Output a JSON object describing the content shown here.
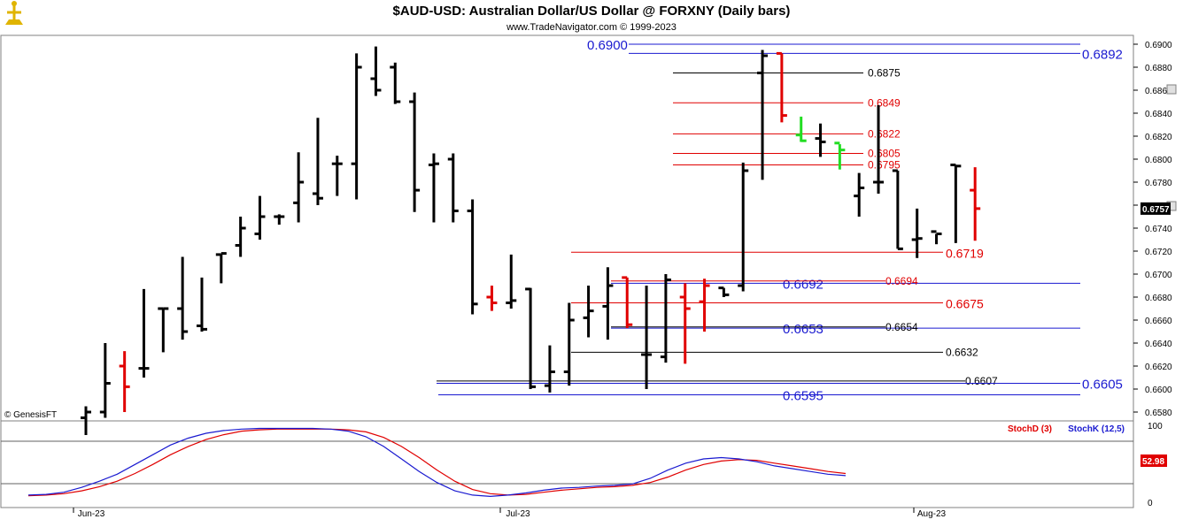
{
  "header": {
    "title": "$AUD-USD:  Australian Dollar/US Dollar @ FORXNY  (Daily bars)",
    "subtitle": "www.TradeNavigator.com © 1999-2023",
    "copyright": "© GenesisFT"
  },
  "colors": {
    "up_bar": "#000000",
    "down_bar": "#e00000",
    "highlight_bar": "#22dd22",
    "blue_level": "#1a1ad0",
    "red_level": "#e00000",
    "black_level": "#000000",
    "stoch_d": "#e00000",
    "stoch_k": "#1a1ad0"
  },
  "chart_data": {
    "type": "ohlc",
    "ylim": [
      0.657,
      0.691
    ],
    "price_ticks": [
      "0.6900",
      "0.6880",
      "0.6860",
      "0.6840",
      "0.6820",
      "0.6800",
      "0.6780",
      "0.6760",
      "0.6740",
      "0.6720",
      "0.6700",
      "0.6680",
      "0.6660",
      "0.6640",
      "0.6620",
      "0.6600",
      "0.6580"
    ],
    "x_labels": [
      "Jun-23",
      "Jul-23",
      "Aug-23"
    ],
    "last_price": "0.6757",
    "bars": [
      {
        "date": "2023-05-31",
        "o": 0.6575,
        "h": 0.6585,
        "l": 0.656,
        "c": 0.658,
        "color": "up"
      },
      {
        "date": "2023-06-01",
        "o": 0.658,
        "h": 0.664,
        "l": 0.6575,
        "c": 0.6605,
        "color": "up"
      },
      {
        "date": "2023-06-02",
        "o": 0.662,
        "h": 0.6633,
        "l": 0.658,
        "c": 0.6602,
        "color": "down"
      },
      {
        "date": "2023-06-05",
        "o": 0.6618,
        "h": 0.6687,
        "l": 0.661,
        "c": 0.6618,
        "color": "up"
      },
      {
        "date": "2023-06-06",
        "o": 0.667,
        "h": 0.667,
        "l": 0.6632,
        "c": 0.667,
        "color": "up"
      },
      {
        "date": "2023-06-07",
        "o": 0.667,
        "h": 0.6715,
        "l": 0.6643,
        "c": 0.665,
        "color": "up"
      },
      {
        "date": "2023-06-08",
        "o": 0.6655,
        "h": 0.6697,
        "l": 0.665,
        "c": 0.6652,
        "color": "up"
      },
      {
        "date": "2023-06-09",
        "o": 0.6717,
        "h": 0.6717,
        "l": 0.6692,
        "c": 0.6718,
        "color": "up"
      },
      {
        "date": "2023-06-12",
        "o": 0.6725,
        "h": 0.675,
        "l": 0.6715,
        "c": 0.674,
        "color": "up"
      },
      {
        "date": "2023-06-13",
        "o": 0.6735,
        "h": 0.6768,
        "l": 0.673,
        "c": 0.675,
        "color": "up"
      },
      {
        "date": "2023-06-14",
        "o": 0.675,
        "h": 0.6752,
        "l": 0.6743,
        "c": 0.675,
        "color": "up"
      },
      {
        "date": "2023-06-15",
        "o": 0.6762,
        "h": 0.6806,
        "l": 0.6745,
        "c": 0.678,
        "color": "up"
      },
      {
        "date": "2023-06-16",
        "o": 0.677,
        "h": 0.6836,
        "l": 0.676,
        "c": 0.6766,
        "color": "up"
      },
      {
        "date": "2023-06-19",
        "o": 0.6796,
        "h": 0.6803,
        "l": 0.6768,
        "c": 0.6796,
        "color": "up"
      },
      {
        "date": "2023-06-20",
        "o": 0.6796,
        "h": 0.6892,
        "l": 0.6765,
        "c": 0.688,
        "color": "up"
      },
      {
        "date": "2023-06-21",
        "o": 0.687,
        "h": 0.6898,
        "l": 0.6855,
        "c": 0.686,
        "color": "up"
      },
      {
        "date": "2023-06-22",
        "o": 0.688,
        "h": 0.6884,
        "l": 0.6848,
        "c": 0.685,
        "color": "up"
      },
      {
        "date": "2023-06-23",
        "o": 0.685,
        "h": 0.6858,
        "l": 0.6754,
        "c": 0.6773,
        "color": "up"
      },
      {
        "date": "2023-06-26",
        "o": 0.6795,
        "h": 0.6805,
        "l": 0.6745,
        "c": 0.6796,
        "color": "up"
      },
      {
        "date": "2023-06-27",
        "o": 0.68,
        "h": 0.6805,
        "l": 0.6745,
        "c": 0.6755,
        "color": "up"
      },
      {
        "date": "2023-06-28",
        "o": 0.6755,
        "h": 0.6765,
        "l": 0.6665,
        "c": 0.6674,
        "color": "up"
      },
      {
        "date": "2023-06-29",
        "o": 0.668,
        "h": 0.669,
        "l": 0.6668,
        "c": 0.6675,
        "color": "down"
      },
      {
        "date": "2023-06-30",
        "o": 0.6675,
        "h": 0.6717,
        "l": 0.667,
        "c": 0.6677,
        "color": "up"
      },
      {
        "date": "2023-07-03",
        "o": 0.6687,
        "h": 0.6688,
        "l": 0.66,
        "c": 0.6602,
        "color": "up"
      },
      {
        "date": "2023-07-04",
        "o": 0.6603,
        "h": 0.6638,
        "l": 0.6597,
        "c": 0.6615,
        "color": "up"
      },
      {
        "date": "2023-07-05",
        "o": 0.6615,
        "h": 0.6675,
        "l": 0.6603,
        "c": 0.666,
        "color": "up"
      },
      {
        "date": "2023-07-06",
        "o": 0.6662,
        "h": 0.669,
        "l": 0.6645,
        "c": 0.6668,
        "color": "up"
      },
      {
        "date": "2023-07-07",
        "o": 0.6672,
        "h": 0.6706,
        "l": 0.6643,
        "c": 0.669,
        "color": "up"
      },
      {
        "date": "2023-07-10",
        "o": 0.6697,
        "h": 0.6697,
        "l": 0.6653,
        "c": 0.6656,
        "color": "down"
      },
      {
        "date": "2023-07-11",
        "o": 0.663,
        "h": 0.669,
        "l": 0.66,
        "c": 0.663,
        "color": "up"
      },
      {
        "date": "2023-07-12",
        "o": 0.6628,
        "h": 0.67,
        "l": 0.6623,
        "c": 0.6695,
        "color": "up"
      },
      {
        "date": "2023-07-13",
        "o": 0.668,
        "h": 0.6692,
        "l": 0.6622,
        "c": 0.667,
        "color": "down"
      },
      {
        "date": "2023-07-14",
        "o": 0.6676,
        "h": 0.6696,
        "l": 0.665,
        "c": 0.669,
        "color": "down"
      },
      {
        "date": "2023-07-17",
        "o": 0.6688,
        "h": 0.6688,
        "l": 0.668,
        "c": 0.6682,
        "color": "up"
      },
      {
        "date": "2023-07-18",
        "o": 0.669,
        "h": 0.6797,
        "l": 0.6685,
        "c": 0.679,
        "color": "up"
      },
      {
        "date": "2023-07-19",
        "o": 0.6875,
        "h": 0.6895,
        "l": 0.6782,
        "c": 0.689,
        "color": "up"
      },
      {
        "date": "2023-07-20",
        "o": 0.6892,
        "h": 0.6892,
        "l": 0.6832,
        "c": 0.6838,
        "color": "down"
      },
      {
        "date": "2023-07-21",
        "o": 0.6821,
        "h": 0.6837,
        "l": 0.6815,
        "c": 0.6816,
        "color": "highlight"
      },
      {
        "date": "2023-07-24",
        "o": 0.6818,
        "h": 0.6831,
        "l": 0.6802,
        "c": 0.6815,
        "color": "up"
      },
      {
        "date": "2023-07-25",
        "o": 0.6814,
        "h": 0.6813,
        "l": 0.6791,
        "c": 0.6808,
        "color": "highlight"
      },
      {
        "date": "2023-07-26",
        "o": 0.6768,
        "h": 0.6788,
        "l": 0.675,
        "c": 0.6775,
        "color": "up"
      },
      {
        "date": "2023-07-27",
        "o": 0.678,
        "h": 0.6847,
        "l": 0.677,
        "c": 0.678,
        "color": "up"
      },
      {
        "date": "2023-07-28",
        "o": 0.679,
        "h": 0.679,
        "l": 0.6722,
        "c": 0.6722,
        "color": "up"
      },
      {
        "date": "2023-07-31",
        "o": 0.673,
        "h": 0.6757,
        "l": 0.6714,
        "c": 0.6731,
        "color": "up"
      },
      {
        "date": "2023-08-01",
        "o": 0.6737,
        "h": 0.6735,
        "l": 0.6726,
        "c": 0.6735,
        "color": "up"
      },
      {
        "date": "2023-08-02",
        "o": 0.6795,
        "h": 0.6795,
        "l": 0.6727,
        "c": 0.6794,
        "color": "up"
      },
      {
        "date": "2023-08-03",
        "o": 0.6773,
        "h": 0.6793,
        "l": 0.6729,
        "c": 0.6757,
        "color": "down"
      }
    ],
    "levels": [
      {
        "value": 0.69,
        "color": "blue",
        "label": "0.6900",
        "label_left": true
      },
      {
        "value": 0.6892,
        "color": "blue",
        "label": "0.6892",
        "label_left": false
      },
      {
        "value": 0.6875,
        "color": "black",
        "label": "0.6875",
        "label_left": false
      },
      {
        "value": 0.6849,
        "color": "red",
        "label": "0.6849",
        "label_left": false
      },
      {
        "value": 0.6822,
        "color": "red",
        "label": "0.6822",
        "label_left": false
      },
      {
        "value": 0.6805,
        "color": "red",
        "label": "0.6805",
        "label_left": false
      },
      {
        "value": 0.6795,
        "color": "red",
        "label": "0.6795",
        "label_left": false
      },
      {
        "value": 0.6719,
        "color": "red",
        "label": "0.6719",
        "label_left": false
      },
      {
        "value": 0.6692,
        "color": "blue",
        "label": "0.6692",
        "label_left": true
      },
      {
        "value": 0.6694,
        "color": "red",
        "label": "0.6694",
        "label_left": false
      },
      {
        "value": 0.6675,
        "color": "red",
        "label": "0.6675",
        "label_left": false
      },
      {
        "value": 0.6653,
        "color": "blue",
        "label": "0.6653",
        "label_left": true
      },
      {
        "value": 0.6654,
        "color": "black",
        "label": "0.6654",
        "label_left": false
      },
      {
        "value": 0.6632,
        "color": "black",
        "label": "0.6632",
        "label_left": false
      },
      {
        "value": 0.6607,
        "color": "black",
        "label": "0.6607",
        "label_left": false
      },
      {
        "value": 0.6605,
        "color": "blue",
        "label": "0.6605",
        "label_left": false
      },
      {
        "value": 0.6595,
        "color": "blue",
        "label": "0.6595",
        "label_left": true
      }
    ],
    "stochastic": {
      "d_label": "StochD (3)",
      "k_label": "StochK (12,5)",
      "ticks": [
        "100",
        "0"
      ],
      "last_value": "52.98",
      "k": [
        4,
        5,
        8,
        15,
        24,
        34,
        48,
        62,
        76,
        86,
        93,
        97,
        99,
        100,
        100,
        100,
        100,
        99,
        96,
        88,
        74,
        56,
        38,
        22,
        10,
        4,
        2,
        4,
        7,
        11,
        14,
        15,
        17,
        18,
        20,
        28,
        40,
        50,
        56,
        58,
        56,
        52,
        46,
        42,
        38,
        34,
        32
      ],
      "d": [
        3,
        4,
        6,
        10,
        16,
        24,
        35,
        48,
        62,
        74,
        84,
        91,
        96,
        98,
        99,
        99,
        99,
        99,
        98,
        95,
        87,
        74,
        58,
        40,
        24,
        12,
        6,
        4,
        5,
        8,
        11,
        13,
        15,
        16,
        18,
        22,
        30,
        40,
        48,
        53,
        55,
        54,
        50,
        46,
        42,
        38,
        35
      ]
    }
  }
}
